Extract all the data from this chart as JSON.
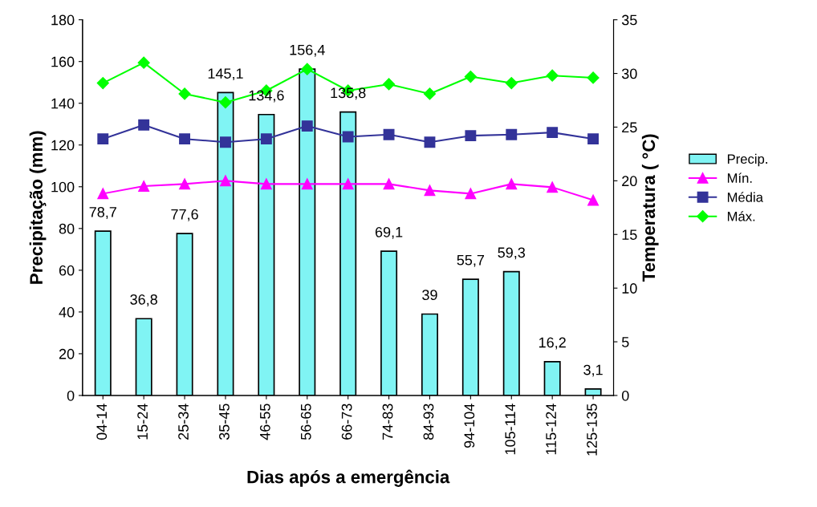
{
  "chart_data": {
    "type": "bar",
    "xlabel": "Dias após a emergência",
    "ylabel": "Precipitação (mm)",
    "y2label": "Temperatura ( °C)",
    "categories": [
      "04-14",
      "15-24",
      "25-34",
      "35-45",
      "46-55",
      "56-65",
      "66-73",
      "74-83",
      "84-93",
      "94-104",
      "105-114",
      "115-124",
      "125-135"
    ],
    "series": [
      {
        "name": "Precip.",
        "color": "#80f4f4",
        "values": [
          78.7,
          36.8,
          77.6,
          145.1,
          134.6,
          156.4,
          135.8,
          69.1,
          39,
          55.7,
          59.3,
          16.2,
          3.1
        ],
        "value_labels": [
          "78,7",
          "36,8",
          "77,6",
          "145,1",
          "134,6",
          "156,4",
          "135,8",
          "69,1",
          "39",
          "55,7",
          "59,3",
          "16,2",
          "3,1"
        ]
      },
      {
        "name": "Mín.",
        "type": "line",
        "axis": "y2",
        "color": "#ff00ff",
        "marker": "triangle",
        "values": [
          18.8,
          19.5,
          19.7,
          20.0,
          19.7,
          19.7,
          19.7,
          19.7,
          19.1,
          18.8,
          19.7,
          19.4,
          18.2
        ]
      },
      {
        "name": "Média",
        "type": "line",
        "axis": "y2",
        "color": "#333399",
        "marker": "square",
        "values": [
          23.9,
          25.2,
          23.9,
          23.6,
          23.9,
          25.1,
          24.1,
          24.3,
          23.6,
          24.2,
          24.3,
          24.5,
          23.9
        ]
      },
      {
        "name": "Máx.",
        "type": "line",
        "axis": "y2",
        "color": "#00ff00",
        "marker": "diamond",
        "values": [
          29.1,
          31.0,
          28.1,
          27.3,
          28.4,
          30.4,
          28.4,
          29.0,
          28.1,
          29.7,
          29.1,
          29.8,
          29.6
        ]
      }
    ],
    "ylim": [
      0,
      180
    ],
    "yticks": [
      0,
      20,
      40,
      60,
      80,
      100,
      120,
      140,
      160,
      180
    ],
    "y2lim": [
      0,
      35
    ],
    "y2ticks": [
      0,
      5,
      10,
      15,
      20,
      25,
      30,
      35
    ],
    "grid": false,
    "legend": "right"
  }
}
